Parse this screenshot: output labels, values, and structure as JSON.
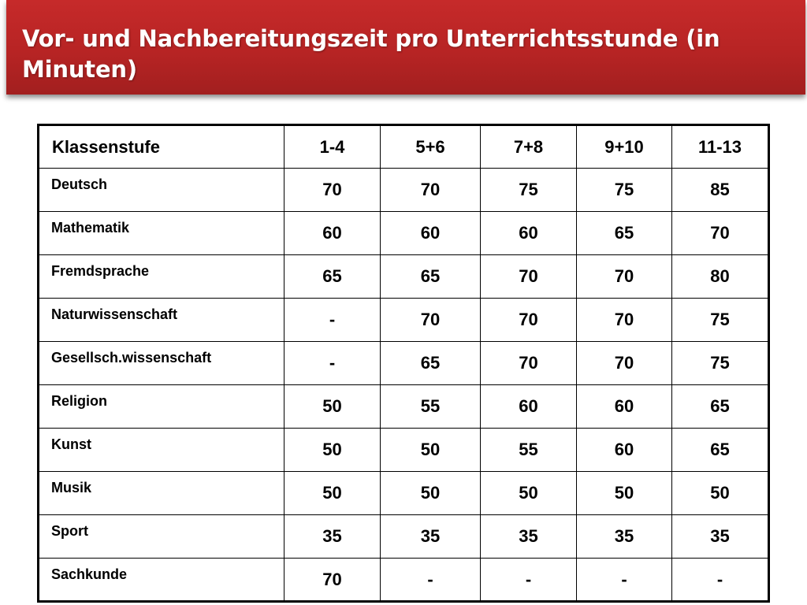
{
  "slide": {
    "title": "Vor- und Nachbereitungszeit pro Unterrichtsstunde (in Minuten)"
  },
  "table": {
    "headers": [
      "Klassenstufe",
      "1-4",
      "5+6",
      "7+8",
      "9+10",
      "11-13"
    ],
    "rows": [
      {
        "subject": "Deutsch",
        "values": [
          "70",
          "70",
          "75",
          "75",
          "85"
        ]
      },
      {
        "subject": "Mathematik",
        "values": [
          "60",
          "60",
          "60",
          "65",
          "70"
        ]
      },
      {
        "subject": "Fremdsprache",
        "values": [
          "65",
          "65",
          "70",
          "70",
          "80"
        ]
      },
      {
        "subject": "Naturwissenschaft",
        "values": [
          "-",
          "70",
          "70",
          "70",
          "75"
        ]
      },
      {
        "subject": "Gesellsch.wissenschaft",
        "values": [
          "-",
          "65",
          "70",
          "70",
          "75"
        ]
      },
      {
        "subject": "Religion",
        "values": [
          "50",
          "55",
          "60",
          "60",
          "65"
        ]
      },
      {
        "subject": "Kunst",
        "values": [
          "50",
          "50",
          "55",
          "60",
          "65"
        ]
      },
      {
        "subject": "Musik",
        "values": [
          "50",
          "50",
          "50",
          "50",
          "50"
        ]
      },
      {
        "subject": "Sport",
        "values": [
          "35",
          "35",
          "35",
          "35",
          "35"
        ]
      },
      {
        "subject": "Sachkunde",
        "values": [
          "70",
          "-",
          "-",
          "-",
          "-"
        ]
      }
    ]
  },
  "colors": {
    "title_bar": "#b72424",
    "title_text": "#ffffff",
    "table_border": "#000000"
  }
}
